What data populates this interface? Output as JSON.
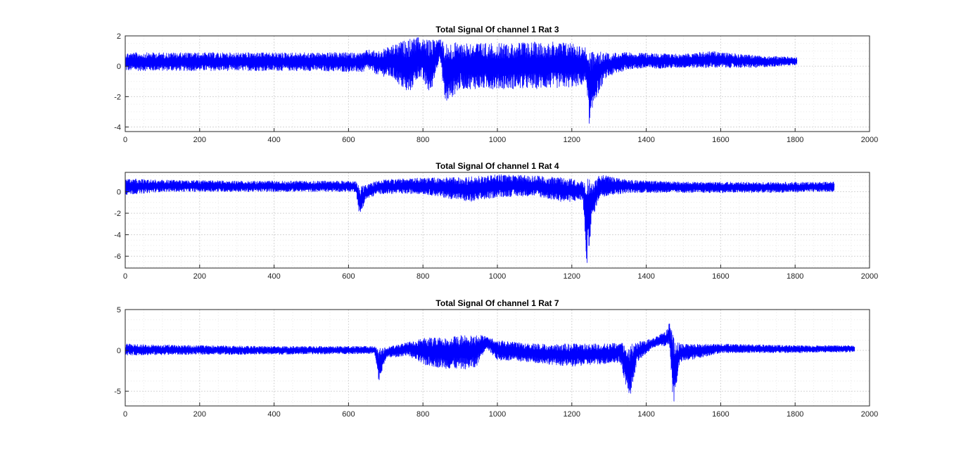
{
  "chart_data": [
    {
      "type": "line",
      "title": "Total Signal Of channel 1 Rat 3",
      "xlim": [
        0,
        2000
      ],
      "ylim": [
        -4.3,
        2
      ],
      "xticks": [
        0,
        200,
        400,
        600,
        800,
        1000,
        1200,
        1400,
        1600,
        1800,
        2000
      ],
      "yticks": [
        2,
        0,
        -2,
        -4
      ],
      "grid": true,
      "color": "#0000ff",
      "x_extent": [
        0,
        1805
      ],
      "envelope": [
        {
          "x": 0,
          "min": -0.3,
          "max": 0.9
        },
        {
          "x": 100,
          "min": -0.3,
          "max": 0.9
        },
        {
          "x": 200,
          "min": -0.3,
          "max": 0.9
        },
        {
          "x": 300,
          "min": -0.3,
          "max": 0.9
        },
        {
          "x": 400,
          "min": -0.3,
          "max": 0.9
        },
        {
          "x": 500,
          "min": -0.3,
          "max": 0.9
        },
        {
          "x": 640,
          "min": -0.4,
          "max": 0.9
        },
        {
          "x": 650,
          "min": -0.2,
          "max": 1.1
        },
        {
          "x": 680,
          "min": -0.6,
          "max": 1.0
        },
        {
          "x": 720,
          "min": -0.8,
          "max": 1.4
        },
        {
          "x": 760,
          "min": -1.9,
          "max": 1.8
        },
        {
          "x": 790,
          "min": -0.7,
          "max": 1.9
        },
        {
          "x": 820,
          "min": -1.9,
          "max": 1.7
        },
        {
          "x": 845,
          "min": 0.6,
          "max": 1.9
        },
        {
          "x": 860,
          "min": -2.5,
          "max": 1.5
        },
        {
          "x": 900,
          "min": -1.5,
          "max": 1.6
        },
        {
          "x": 1000,
          "min": -1.5,
          "max": 1.5
        },
        {
          "x": 1100,
          "min": -1.5,
          "max": 1.6
        },
        {
          "x": 1200,
          "min": -1.4,
          "max": 1.6
        },
        {
          "x": 1240,
          "min": -1.2,
          "max": 1.2
        },
        {
          "x": 1248,
          "min": -4.3,
          "max": 1.0
        },
        {
          "x": 1260,
          "min": -2.4,
          "max": 1.0
        },
        {
          "x": 1290,
          "min": -0.8,
          "max": 0.9
        },
        {
          "x": 1350,
          "min": -0.2,
          "max": 0.9
        },
        {
          "x": 1500,
          "min": -0.1,
          "max": 0.8
        },
        {
          "x": 1570,
          "min": -0.1,
          "max": 1.0
        },
        {
          "x": 1700,
          "min": -0.1,
          "max": 0.7
        },
        {
          "x": 1805,
          "min": 0.1,
          "max": 0.6
        }
      ]
    },
    {
      "type": "line",
      "title": "Total Signal Of channel 1 Rat 4",
      "xlim": [
        0,
        2000
      ],
      "ylim": [
        -7.1,
        1.8
      ],
      "xticks": [
        0,
        200,
        400,
        600,
        800,
        1000,
        1200,
        1400,
        1600,
        1800,
        2000
      ],
      "yticks": [
        0,
        -2,
        -4,
        -6
      ],
      "grid": true,
      "color": "#0000ff",
      "x_extent": [
        0,
        1905
      ],
      "envelope": [
        {
          "x": 0,
          "min": -0.3,
          "max": 1.2
        },
        {
          "x": 100,
          "min": 0.0,
          "max": 1.1
        },
        {
          "x": 300,
          "min": 0.0,
          "max": 1.0
        },
        {
          "x": 500,
          "min": 0.0,
          "max": 1.0
        },
        {
          "x": 620,
          "min": 0.0,
          "max": 1.0
        },
        {
          "x": 630,
          "min": -2.4,
          "max": 0.5
        },
        {
          "x": 645,
          "min": -0.8,
          "max": 0.6
        },
        {
          "x": 680,
          "min": -0.2,
          "max": 1.1
        },
        {
          "x": 800,
          "min": -0.2,
          "max": 1.3
        },
        {
          "x": 930,
          "min": -1.0,
          "max": 1.4
        },
        {
          "x": 1000,
          "min": -0.5,
          "max": 1.6
        },
        {
          "x": 1100,
          "min": -0.4,
          "max": 1.5
        },
        {
          "x": 1180,
          "min": -1.0,
          "max": 1.3
        },
        {
          "x": 1230,
          "min": -0.8,
          "max": 1.0
        },
        {
          "x": 1240,
          "min": -7.1,
          "max": 1.8
        },
        {
          "x": 1255,
          "min": -2.5,
          "max": 0.8
        },
        {
          "x": 1275,
          "min": -0.5,
          "max": 1.6
        },
        {
          "x": 1350,
          "min": -0.1,
          "max": 1.1
        },
        {
          "x": 1500,
          "min": -0.1,
          "max": 0.9
        },
        {
          "x": 1700,
          "min": -0.1,
          "max": 0.9
        },
        {
          "x": 1905,
          "min": 0.0,
          "max": 0.9
        }
      ]
    },
    {
      "type": "line",
      "title": "Total Signal Of channel 1 Rat 7",
      "xlim": [
        0,
        2000
      ],
      "ylim": [
        -6.8,
        5
      ],
      "xticks": [
        0,
        200,
        400,
        600,
        800,
        1000,
        1200,
        1400,
        1600,
        1800,
        2000
      ],
      "yticks": [
        5,
        0,
        -5
      ],
      "grid": true,
      "color": "#0000ff",
      "x_extent": [
        0,
        1960
      ],
      "envelope": [
        {
          "x": 0,
          "min": -0.6,
          "max": 0.8
        },
        {
          "x": 200,
          "min": -0.5,
          "max": 0.6
        },
        {
          "x": 400,
          "min": -0.5,
          "max": 0.5
        },
        {
          "x": 670,
          "min": -0.4,
          "max": 0.5
        },
        {
          "x": 682,
          "min": -4.0,
          "max": 0.3
        },
        {
          "x": 700,
          "min": -1.0,
          "max": 0.4
        },
        {
          "x": 760,
          "min": -0.6,
          "max": 1.0
        },
        {
          "x": 800,
          "min": -1.8,
          "max": 1.5
        },
        {
          "x": 870,
          "min": -2.3,
          "max": 1.8
        },
        {
          "x": 940,
          "min": -2.3,
          "max": 2.0
        },
        {
          "x": 970,
          "min": 0.3,
          "max": 1.8
        },
        {
          "x": 1000,
          "min": -1.2,
          "max": 1.2
        },
        {
          "x": 1100,
          "min": -1.5,
          "max": 0.8
        },
        {
          "x": 1200,
          "min": -2.0,
          "max": 0.8
        },
        {
          "x": 1330,
          "min": -1.5,
          "max": 0.9
        },
        {
          "x": 1355,
          "min": -6.0,
          "max": 0.8
        },
        {
          "x": 1375,
          "min": -1.5,
          "max": 1.0
        },
        {
          "x": 1420,
          "min": 0.4,
          "max": 1.5
        },
        {
          "x": 1455,
          "min": 0.5,
          "max": 2.5
        },
        {
          "x": 1462,
          "min": 0.8,
          "max": 3.7
        },
        {
          "x": 1473,
          "min": -6.8,
          "max": 1.5
        },
        {
          "x": 1490,
          "min": -1.5,
          "max": 0.8
        },
        {
          "x": 1600,
          "min": -0.3,
          "max": 0.8
        },
        {
          "x": 1800,
          "min": -0.3,
          "max": 0.6
        },
        {
          "x": 1960,
          "min": -0.2,
          "max": 0.6
        }
      ]
    }
  ]
}
